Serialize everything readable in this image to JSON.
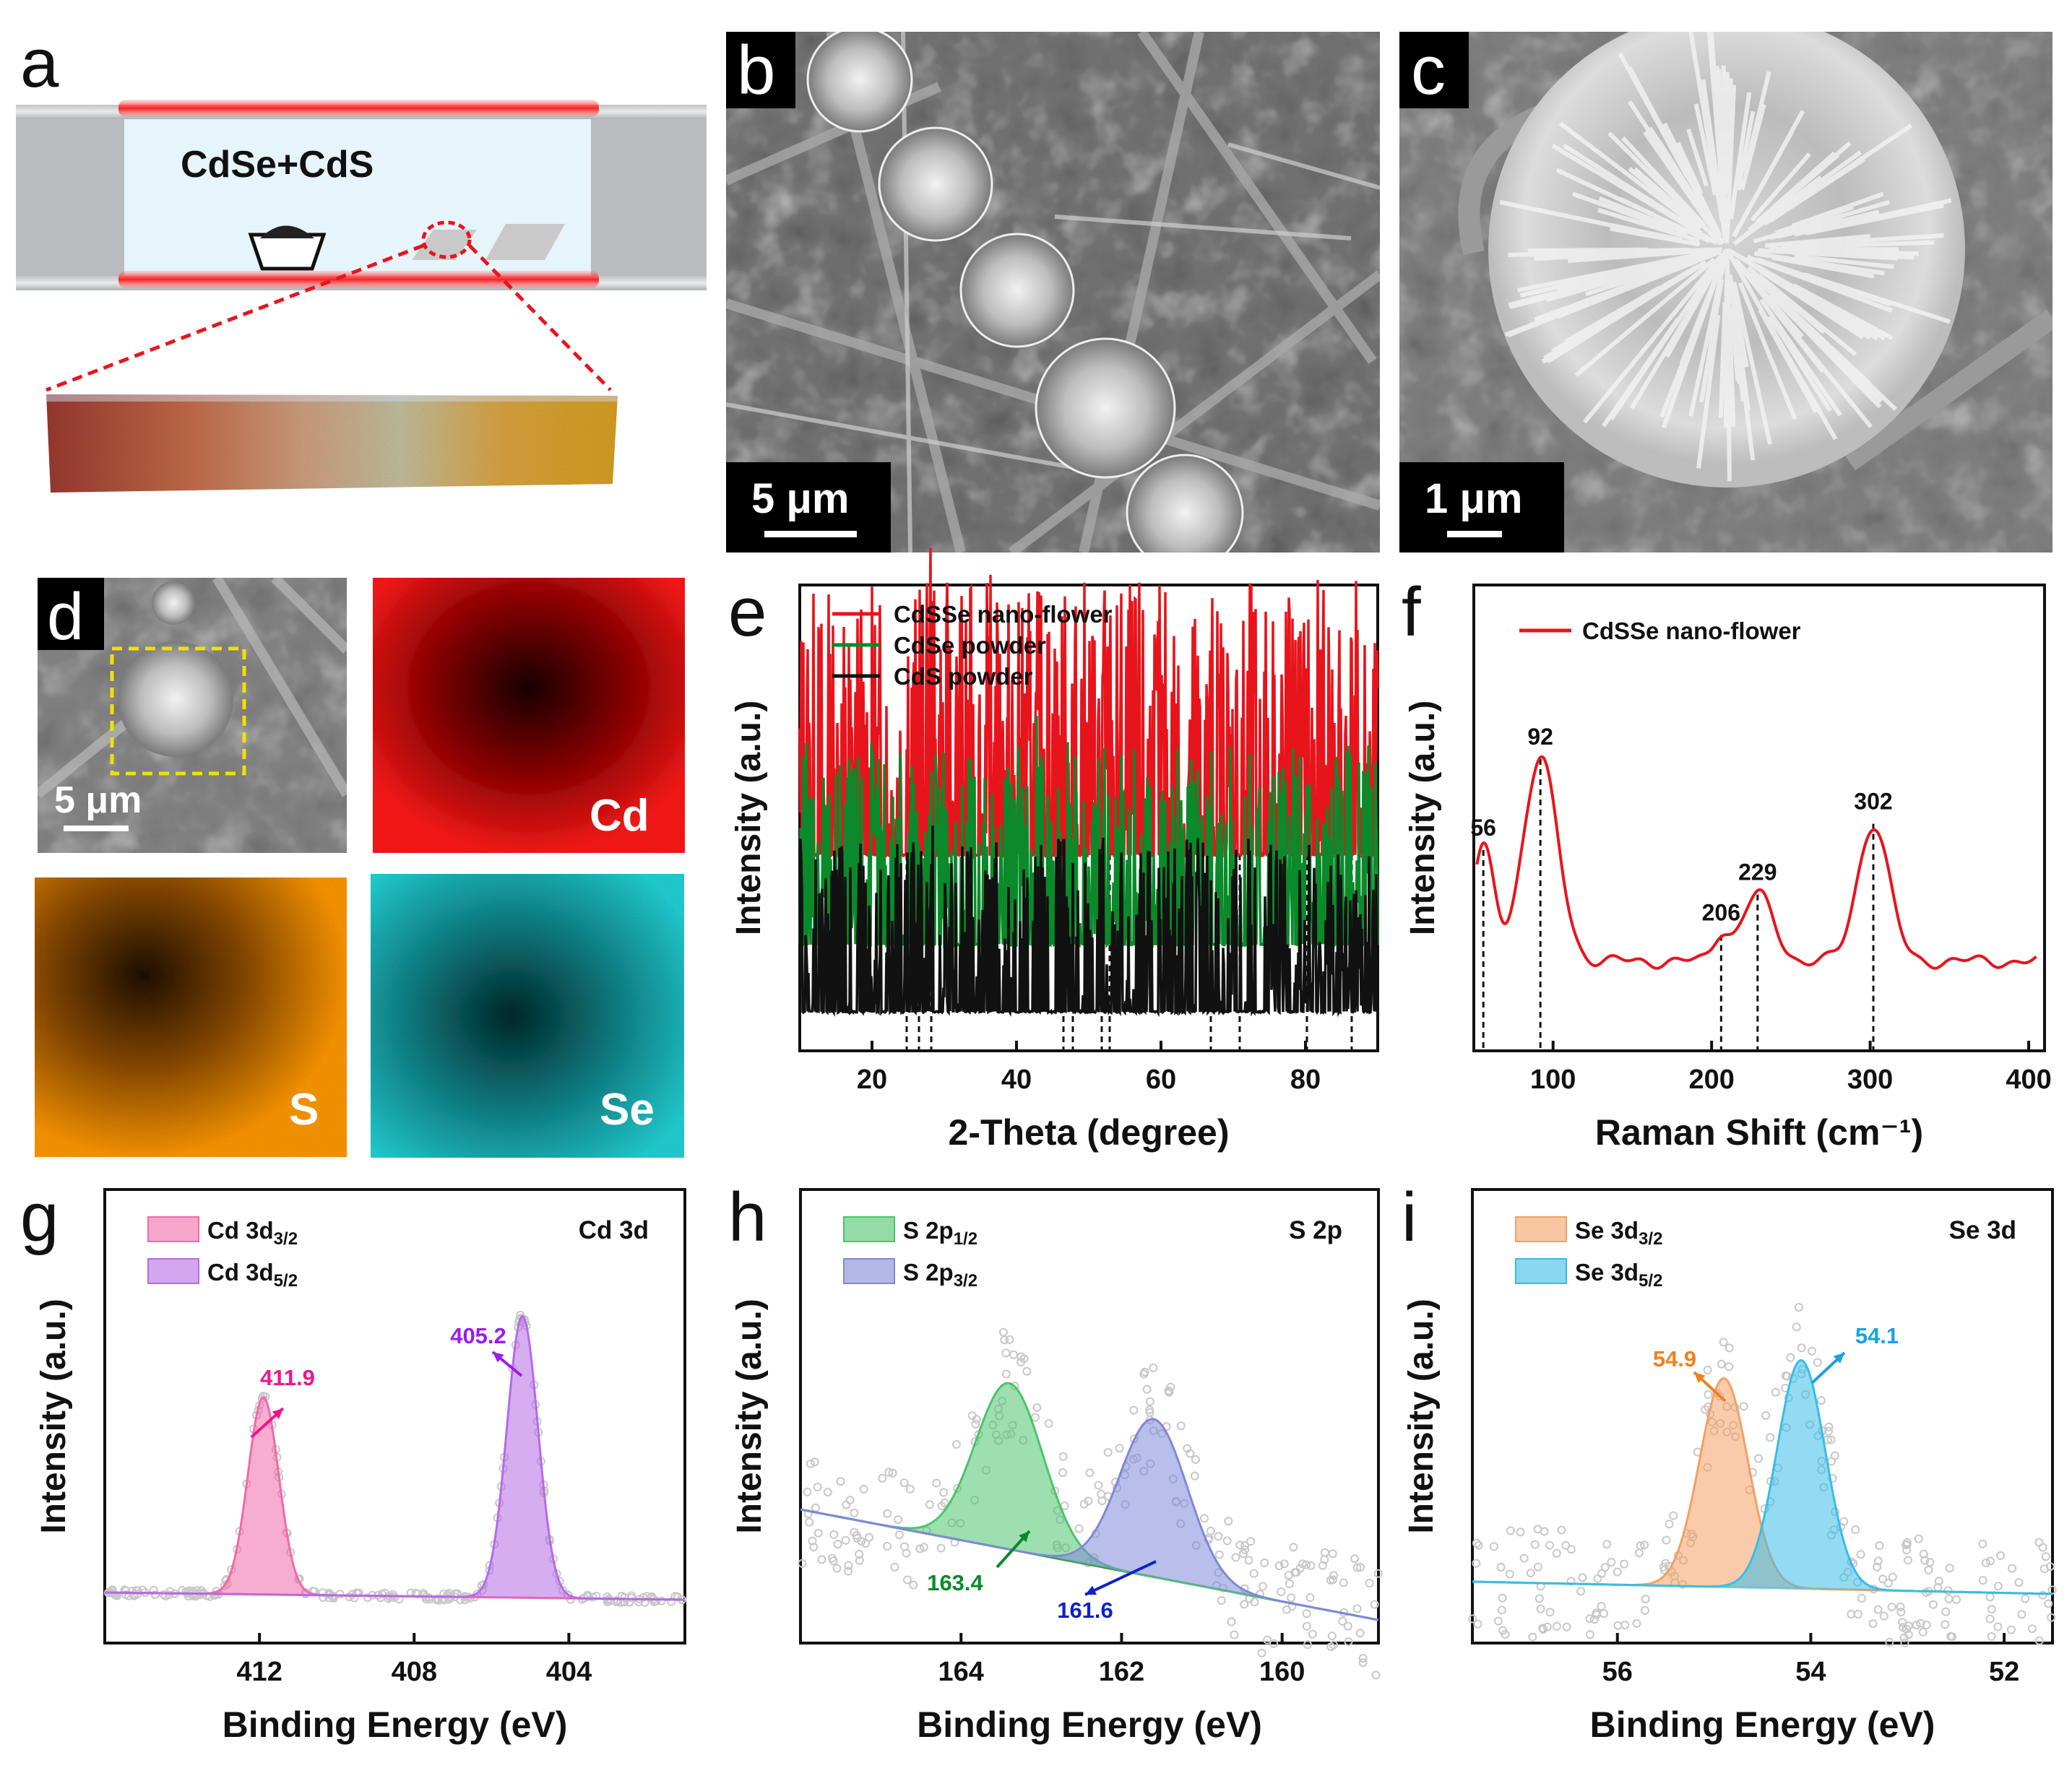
{
  "panels": {
    "a": {
      "letter": "a",
      "label": "CdSe+CdS"
    },
    "b": {
      "letter": "b",
      "scale": "5 μm"
    },
    "c": {
      "letter": "c",
      "scale": "1 μm"
    },
    "d": {
      "letter": "d",
      "scale": "5 μm",
      "maps": [
        "Cd",
        "S",
        "Se"
      ]
    },
    "e": {
      "letter": "e"
    },
    "f": {
      "letter": "f"
    },
    "g": {
      "letter": "g"
    },
    "h": {
      "letter": "h"
    },
    "i": {
      "letter": "i"
    }
  },
  "colors": {
    "red": "#e8141c",
    "green": "#0a8a2a",
    "black": "#111111",
    "cd_map": "#ff1a1a",
    "s_map": "#ff9900",
    "se_map": "#22d3d8"
  },
  "chart_data": [
    {
      "id": "e",
      "type": "line",
      "xlabel": "2-Theta (degree)",
      "ylabel": "Intensity (a.u.)",
      "xlim": [
        10,
        90
      ],
      "xticks": [
        20,
        40,
        60,
        80
      ],
      "series": [
        {
          "name": "CdSSe nano-flower",
          "color": "#e8141c",
          "peaks": [
            [
              24.9,
              0.9
            ],
            [
              26.5,
              0.84
            ],
            [
              28.1,
              0.98
            ],
            [
              36.6,
              0.2
            ],
            [
              43.7,
              0.86
            ],
            [
              47.8,
              0.44
            ],
            [
              51.8,
              0.35
            ],
            [
              52.0,
              0.58
            ],
            [
              52.9,
              0.18
            ],
            [
              58.3,
              0.1
            ],
            [
              66.9,
              0.1
            ],
            [
              70.9,
              0.12
            ],
            [
              75.5,
              0.08
            ],
            [
              80.2,
              0.07
            ],
            [
              83.1,
              0.08
            ],
            [
              86.3,
              0.06
            ]
          ]
        },
        {
          "name": "CdSe powder",
          "color": "#0a8a2a",
          "peaks": [
            [
              25.3,
              0.95
            ],
            [
              35.9,
              0.1
            ],
            [
              42.9,
              0.55
            ],
            [
              46.0,
              0.18
            ],
            [
              49.6,
              0.42
            ],
            [
              67.2,
              0.48
            ],
            [
              77.5,
              0.58
            ],
            [
              80.2,
              0.3
            ],
            [
              86.4,
              0.1
            ]
          ]
        },
        {
          "name": "CdS powder",
          "color": "#111111",
          "peaks": [
            [
              24.8,
              0.78
            ],
            [
              26.5,
              0.6
            ],
            [
              28.2,
              0.82
            ],
            [
              36.6,
              0.15
            ],
            [
              43.7,
              0.72
            ],
            [
              47.8,
              0.38
            ],
            [
              50.9,
              0.22
            ],
            [
              51.8,
              0.32
            ],
            [
              52.8,
              0.14
            ],
            [
              58.3,
              0.06
            ],
            [
              66.8,
              0.1
            ],
            [
              70.9,
              0.38
            ],
            [
              72.4,
              0.1
            ],
            [
              75.5,
              0.07
            ],
            [
              80.2,
              0.18
            ],
            [
              82.9,
              0.12
            ]
          ]
        }
      ],
      "reference_lines": [
        24.8,
        26.5,
        28.2,
        46.5,
        47.8,
        51.8,
        52.9,
        66.9,
        70.9,
        80.2,
        86.4
      ]
    },
    {
      "id": "f",
      "type": "line",
      "xlabel": "Raman Shift (cm⁻¹)",
      "ylabel": "Intensity (a.u.)",
      "xlim": [
        50,
        410
      ],
      "xticks": [
        100,
        200,
        300,
        400
      ],
      "series": [
        {
          "name": "CdSSe nano-flower",
          "color": "#e8141c"
        }
      ],
      "peaks": [
        56,
        92,
        206,
        229,
        302
      ],
      "peak_labels": [
        "56",
        "92",
        "206",
        "229",
        "302"
      ]
    },
    {
      "id": "g",
      "type": "area",
      "xlabel": "Binding Energy (eV)",
      "ylabel": "Intensity (a.u.)",
      "xlim": [
        416,
        401
      ],
      "xticks": [
        412,
        408,
        404
      ],
      "title": "Cd 3d",
      "series": [
        {
          "name": "Cd 3d3/2",
          "main": "Cd 3d",
          "sub": "3/2",
          "color": "#f06aa8",
          "peak": 411.9,
          "height": 0.7
        },
        {
          "name": "Cd 3d5/2",
          "main": "Cd 3d",
          "sub": "5/2",
          "color": "#b66ae6",
          "peak": 405.2,
          "height": 1.0
        }
      ],
      "annotations": [
        {
          "text": "411.9",
          "color": "#f0158c"
        },
        {
          "text": "405.2",
          "color": "#9b1cf0"
        }
      ]
    },
    {
      "id": "h",
      "type": "area",
      "xlabel": "Binding Energy (eV)",
      "ylabel": "Intensity (a.u.)",
      "xlim": [
        166,
        158.8
      ],
      "xticks": [
        164,
        162,
        160
      ],
      "title": "S 2p",
      "series": [
        {
          "name": "S 2p1/2",
          "main": "S 2p",
          "sub": "1/2",
          "color": "#4cc46c",
          "peak": 163.4,
          "height": 1.0
        },
        {
          "name": "S 2p3/2",
          "main": "S 2p",
          "sub": "3/2",
          "color": "#8088d8",
          "peak": 161.6,
          "height": 0.95
        }
      ],
      "annotations": [
        {
          "text": "163.4",
          "color": "#0a8a2a"
        },
        {
          "text": "161.6",
          "color": "#1020c8"
        }
      ]
    },
    {
      "id": "i",
      "type": "area",
      "xlabel": "Binding Energy (eV)",
      "ylabel": "Intensity (a.u.)",
      "xlim": [
        57.5,
        51.5
      ],
      "xticks": [
        56,
        54,
        52
      ],
      "title": "Se 3d",
      "series": [
        {
          "name": "Se 3d3/2",
          "main": "Se 3d",
          "sub": "3/2",
          "color": "#f4a064",
          "peak": 54.9,
          "height": 0.85
        },
        {
          "name": "Se 3d5/2",
          "main": "Se 3d",
          "sub": "5/2",
          "color": "#38bde8",
          "peak": 54.1,
          "height": 0.93
        }
      ],
      "annotations": [
        {
          "text": "54.9",
          "color": "#f08020"
        },
        {
          "text": "54.1",
          "color": "#1aa0e8"
        }
      ]
    }
  ]
}
